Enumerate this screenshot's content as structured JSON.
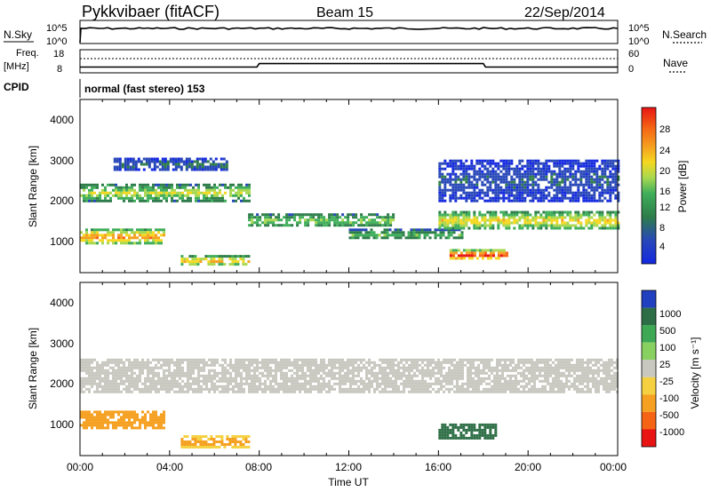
{
  "header": {
    "station": "Pykkvibaer (fitACF)",
    "beam": "Beam 15",
    "date": "22/Sep/2014"
  },
  "nsky_panel": {
    "left_label": "N.Sky",
    "left_ticks": [
      "10^5",
      "10^0"
    ],
    "right_label": "N.Search",
    "right_ticks": [
      "10^5",
      "10^0"
    ]
  },
  "freq_panel": {
    "left_label_1": "Freq.",
    "left_label_2": "[MHz]",
    "left_ticks": [
      "18",
      "8"
    ],
    "right_label": "Nave",
    "right_ticks": [
      "60",
      "0"
    ]
  },
  "cpid": {
    "label": "CPID",
    "value": "normal (fast stereo) 153"
  },
  "power_panel": {
    "ylabel": "Slant Range [km]",
    "yticks": [
      "4000",
      "3000",
      "2000",
      "1000"
    ],
    "colorbar_label": "Power [dB]",
    "colorbar_ticks": [
      "28",
      "24",
      "20",
      "16",
      "12",
      "8",
      "4"
    ],
    "colors": [
      "#1428e0",
      "#2848b8",
      "#2e7d4a",
      "#3fae5a",
      "#a8d850",
      "#f5d820",
      "#f5a020",
      "#f56414",
      "#e81414"
    ]
  },
  "velocity_panel": {
    "ylabel": "Slant Range [km]",
    "yticks": [
      "4000",
      "3000",
      "2000",
      "1000"
    ],
    "colorbar_label": "Velocity [m s⁻¹]",
    "colorbar_ticks": [
      "1000",
      "500",
      "100",
      "25",
      "-25",
      "-100",
      "-500",
      "-1000"
    ],
    "colors": [
      "#2040c0",
      "#2e6e46",
      "#3ea855",
      "#88d060",
      "#c8c8c0",
      "#f5d040",
      "#f5a020",
      "#f56414",
      "#e81414"
    ]
  },
  "x_axis": {
    "ticks": [
      "00:00",
      "04:00",
      "08:00",
      "12:00",
      "16:00",
      "20:00",
      "00:00"
    ],
    "label": "Time UT"
  },
  "chart_data": {
    "type": "heatmap",
    "title": "Pykkvibaer (fitACF) Beam 15 22/Sep/2014",
    "xlabel": "Time UT",
    "ylabel": "Slant Range [km]",
    "x_range_hours": [
      0,
      24
    ],
    "y_range_km": [
      180,
      4500
    ],
    "frequency_mhz": {
      "times_hours": [
        0,
        3,
        7.9,
        8,
        18,
        18.1,
        24
      ],
      "values": [
        10.5,
        10.5,
        10.5,
        12,
        12,
        10.5,
        10.5
      ]
    },
    "power_echo_regions": [
      {
        "t_start": 0,
        "t_end": 3.7,
        "range_center": 1100,
        "range_halfwidth": 180,
        "power_db": 20
      },
      {
        "t_start": 0,
        "t_end": 7.5,
        "range_center": 2200,
        "range_halfwidth": 200,
        "power_db": 14
      },
      {
        "t_start": 1.5,
        "t_end": 6.5,
        "range_center": 2900,
        "range_halfwidth": 150,
        "power_db": 6
      },
      {
        "t_start": 4.5,
        "t_end": 7.5,
        "range_center": 500,
        "range_halfwidth": 120,
        "power_db": 18
      },
      {
        "t_start": 7.5,
        "t_end": 14,
        "range_center": 1500,
        "range_halfwidth": 160,
        "power_db": 12
      },
      {
        "t_start": 12,
        "t_end": 17,
        "range_center": 1150,
        "range_halfwidth": 130,
        "power_db": 10
      },
      {
        "t_start": 16,
        "t_end": 24,
        "range_center": 1500,
        "range_halfwidth": 220,
        "power_db": 16
      },
      {
        "t_start": 16.5,
        "t_end": 19,
        "range_center": 650,
        "range_halfwidth": 120,
        "power_db": 24
      },
      {
        "t_start": 16,
        "t_end": 24,
        "range_center": 2500,
        "range_halfwidth": 500,
        "power_db": 5
      }
    ],
    "velocity_echo_regions": [
      {
        "t_start": 0,
        "t_end": 3.7,
        "range_center": 1100,
        "range_halfwidth": 200,
        "velocity_ms": -300
      },
      {
        "t_start": 4.5,
        "t_end": 7.5,
        "range_center": 550,
        "range_halfwidth": 140,
        "velocity_ms": -120
      },
      {
        "t_start": 0,
        "t_end": 24,
        "range_center": 2200,
        "range_halfwidth": 400,
        "velocity_ms": 0
      },
      {
        "t_start": 16,
        "t_end": 18.5,
        "range_center": 800,
        "range_halfwidth": 180,
        "velocity_ms": 300
      }
    ]
  }
}
